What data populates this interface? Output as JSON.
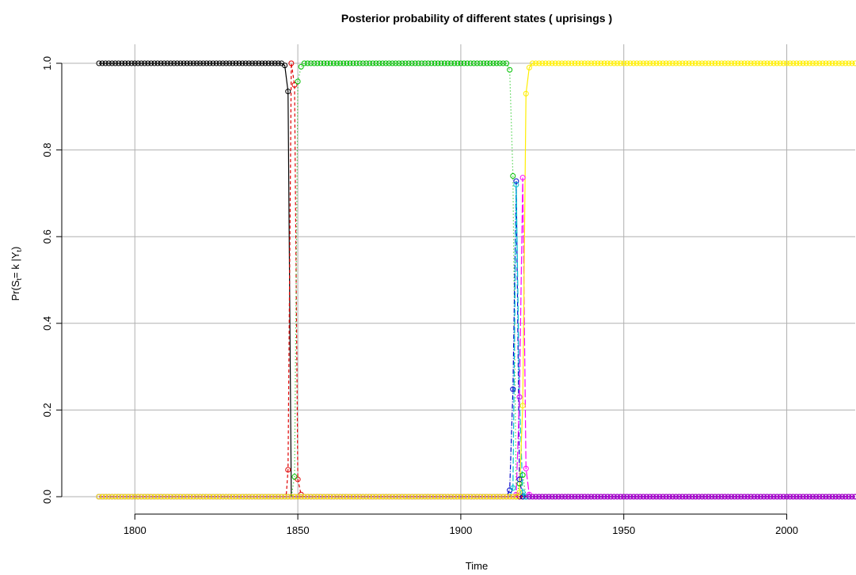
{
  "chart_data": {
    "type": "line",
    "title": "Posterior probability of different states ( uprisings )",
    "xlabel": "Time",
    "ylabel": "Pr(S",
    "ylabel_sub1": "t",
    "ylabel_mid": "= k |Y",
    "ylabel_sub2": "t",
    "ylabel_end": ")",
    "xlim": [
      1788,
      2021
    ],
    "ylim": [
      0,
      1
    ],
    "x_ticks": [
      1800,
      1850,
      1900,
      1950,
      2000
    ],
    "x_tick_labels": [
      "1800",
      "1850",
      "1900",
      "1950",
      "2000"
    ],
    "y_ticks": [
      0,
      0.2,
      0.4,
      0.6,
      0.8,
      1
    ],
    "y_tick_labels": [
      "0.0",
      "0.2",
      "0.4",
      "0.6",
      "0.8",
      "1.0"
    ],
    "grid": true,
    "x_start": 1789,
    "x_end": 2021,
    "series": [
      {
        "color": "#000000",
        "dash": "",
        "points": [
          [
            1789,
            1
          ],
          [
            1845,
            1
          ],
          [
            1846,
            0.995
          ],
          [
            1847,
            0.935
          ],
          [
            1848,
            0
          ],
          [
            1849,
            0
          ],
          [
            2021,
            0
          ]
        ]
      },
      {
        "color": "#df0000",
        "dash": "4,3",
        "points": [
          [
            1789,
            0
          ],
          [
            1846,
            0
          ],
          [
            1846.5,
            0.008
          ],
          [
            1847,
            0.062
          ],
          [
            1848,
            1
          ],
          [
            1849,
            0.95
          ],
          [
            1850,
            0.04
          ],
          [
            1851,
            0.005
          ],
          [
            1852,
            0
          ],
          [
            2021,
            0
          ]
        ]
      },
      {
        "color": "#00c000",
        "dash": "1,3",
        "points": [
          [
            1789,
            0
          ],
          [
            1848,
            0
          ],
          [
            1849,
            0.046
          ],
          [
            1850,
            0.958
          ],
          [
            1851,
            0.992
          ],
          [
            1852,
            1
          ],
          [
            1914,
            1
          ],
          [
            1915,
            0.985
          ],
          [
            1916,
            0.74
          ],
          [
            1917,
            0
          ],
          [
            1918,
            0.03
          ],
          [
            1919,
            0.05
          ],
          [
            1920,
            0
          ],
          [
            2021,
            0
          ]
        ]
      },
      {
        "color": "#0000cc",
        "dash": "6,2,1,2",
        "points": [
          [
            1789,
            0
          ],
          [
            1914,
            0
          ],
          [
            1915,
            0.015
          ],
          [
            1916,
            0.248
          ],
          [
            1917,
            0.728
          ],
          [
            1918,
            0.04
          ],
          [
            1919,
            0
          ],
          [
            2021,
            0
          ]
        ]
      },
      {
        "color": "#00bfd0",
        "dash": "8,3",
        "points": [
          [
            1789,
            0
          ],
          [
            1915,
            0
          ],
          [
            1916,
            0.02
          ],
          [
            1917,
            0.72
          ],
          [
            1918,
            0.23
          ],
          [
            1919,
            0.01
          ],
          [
            1920,
            0
          ],
          [
            2021,
            0
          ]
        ]
      },
      {
        "color": "#ff00ff",
        "dash": "10,3",
        "points": [
          [
            1789,
            0
          ],
          [
            1916,
            0
          ],
          [
            1917,
            0.005
          ],
          [
            1918,
            0.23
          ],
          [
            1919,
            0.736
          ],
          [
            1920,
            0.065
          ],
          [
            1921,
            0.005
          ],
          [
            1922,
            0
          ],
          [
            2021,
            0
          ]
        ]
      },
      {
        "color": "#ffee00",
        "dash": "",
        "points": [
          [
            1789,
            0
          ],
          [
            1917,
            0
          ],
          [
            1918,
            0.01
          ],
          [
            1919,
            0.21
          ],
          [
            1920,
            0.93
          ],
          [
            1921,
            0.99
          ],
          [
            1922,
            1
          ],
          [
            2021,
            1
          ]
        ]
      },
      {
        "color": "#b000d0",
        "dash": "",
        "markers_from": 1921,
        "points": [
          [
            1789,
            0
          ],
          [
            2021,
            0
          ]
        ]
      }
    ]
  }
}
